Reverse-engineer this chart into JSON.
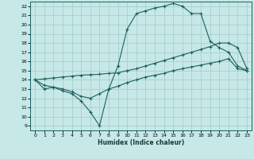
{
  "xlabel": "Humidex (Indice chaleur)",
  "bg_color": "#c6e8e6",
  "grid_color": "#a8d0cc",
  "line_color": "#1a6060",
  "xlim": [
    -0.5,
    23.5
  ],
  "ylim": [
    8.5,
    22.5
  ],
  "xticks": [
    0,
    1,
    2,
    3,
    4,
    5,
    6,
    7,
    8,
    9,
    10,
    11,
    12,
    13,
    14,
    15,
    16,
    17,
    18,
    19,
    20,
    21,
    22,
    23
  ],
  "yticks": [
    9,
    10,
    11,
    12,
    13,
    14,
    15,
    16,
    17,
    18,
    19,
    20,
    21,
    22
  ],
  "line1_x": [
    0,
    1,
    2,
    3,
    4,
    5,
    6,
    7,
    8,
    9,
    10,
    11,
    12,
    13,
    14,
    15,
    16,
    17,
    18,
    19,
    20,
    21,
    22,
    23
  ],
  "line1_y": [
    14,
    13,
    13.2,
    12.8,
    12.5,
    11.7,
    10.5,
    9,
    13,
    15.5,
    19.5,
    21.2,
    21.5,
    21.8,
    22,
    22.3,
    22,
    21.2,
    21.2,
    18.2,
    17.5,
    17,
    15.5,
    15
  ],
  "line2_x": [
    0,
    1,
    2,
    3,
    4,
    5,
    6,
    7,
    8,
    9,
    10,
    11,
    12,
    13,
    14,
    15,
    16,
    17,
    18,
    19,
    20,
    21,
    22,
    23
  ],
  "line2_y": [
    14,
    14.1,
    14.2,
    14.3,
    14.4,
    14.5,
    14.55,
    14.6,
    14.7,
    14.75,
    15.0,
    15.2,
    15.5,
    15.8,
    16.1,
    16.4,
    16.7,
    17.0,
    17.3,
    17.6,
    18.0,
    18.0,
    17.5,
    15.2
  ],
  "line3_x": [
    0,
    1,
    2,
    3,
    4,
    5,
    6,
    7,
    8,
    9,
    10,
    11,
    12,
    13,
    14,
    15,
    16,
    17,
    18,
    19,
    20,
    21,
    22,
    23
  ],
  "line3_y": [
    14,
    13.4,
    13.2,
    13.0,
    12.7,
    12.2,
    12.0,
    12.5,
    13.0,
    13.3,
    13.7,
    14.0,
    14.3,
    14.5,
    14.7,
    15.0,
    15.2,
    15.4,
    15.6,
    15.8,
    16.0,
    16.3,
    15.2,
    15.0
  ]
}
